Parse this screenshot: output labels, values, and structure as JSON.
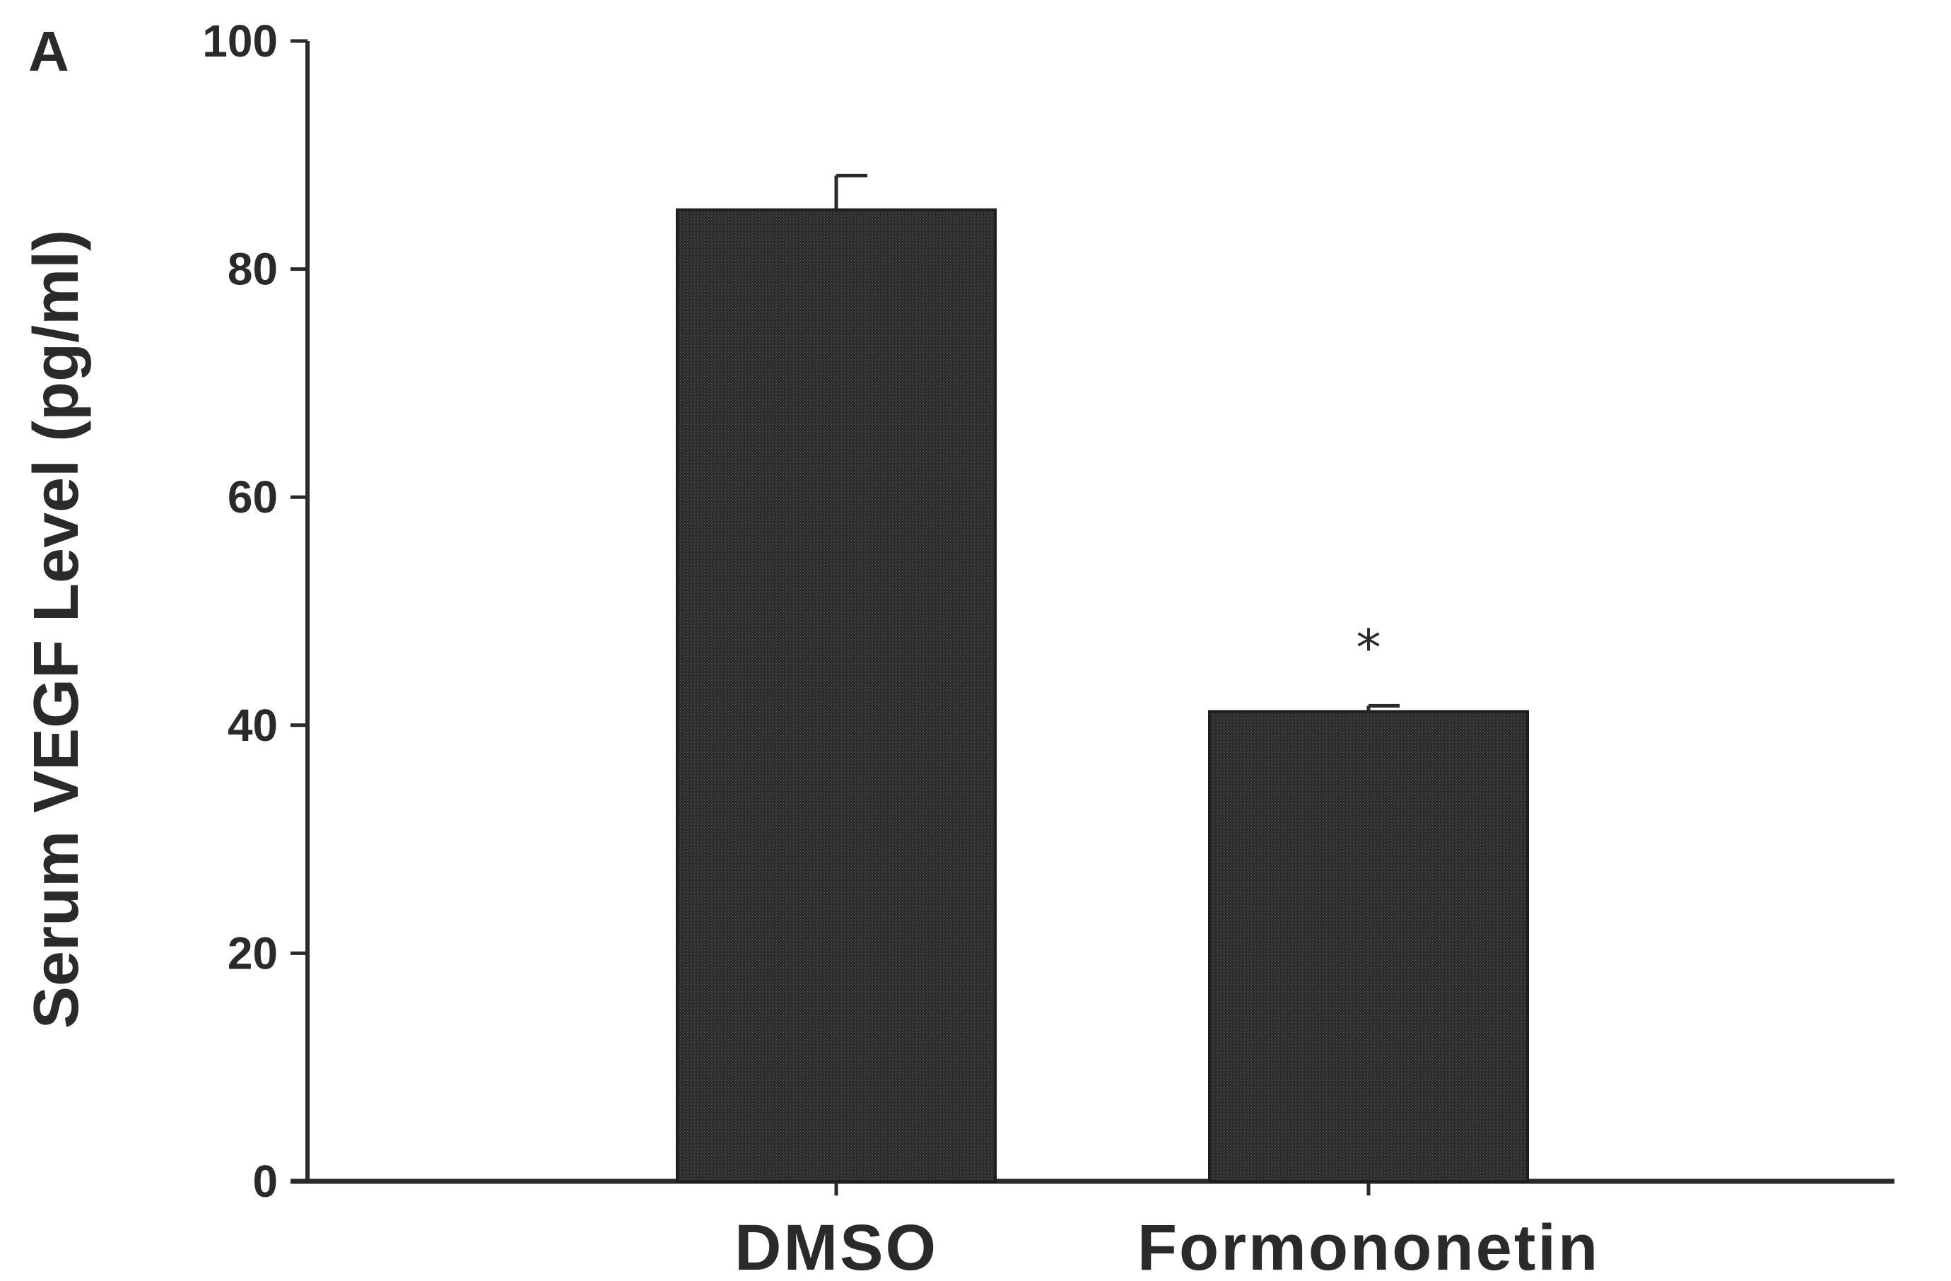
{
  "panel_label": "A",
  "chart_data": {
    "type": "bar",
    "categories": [
      "DMSO",
      "Formononetin"
    ],
    "values": [
      85.2,
      41.2
    ],
    "errors": [
      3.0,
      0.5
    ],
    "significance": [
      "",
      "*"
    ],
    "title": "",
    "xlabel": "",
    "ylabel": "Serum VEGF Level (pg/ml)",
    "ylim": [
      0,
      100
    ],
    "yticks": [
      0,
      20,
      40,
      60,
      80,
      100
    ],
    "bar_color": "#2b2b2b",
    "axis_color": "#2a2a2a",
    "grid": false,
    "legend": "none"
  }
}
